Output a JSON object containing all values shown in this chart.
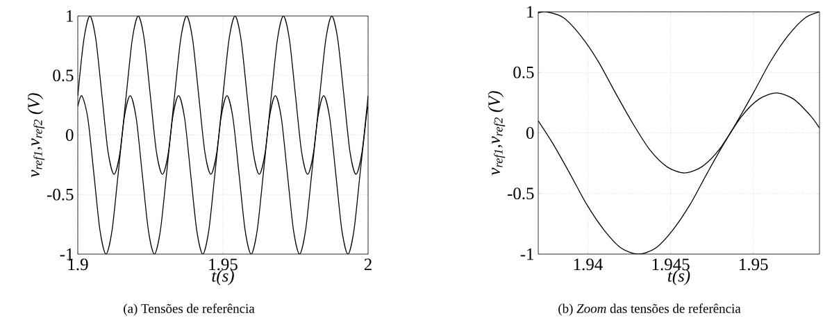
{
  "chart_data": [
    {
      "type": "line",
      "xlabel": "t(s)",
      "ylabel": "v$_{ref1}$,v$_{ref2}$ (V)",
      "annotations": [
        "(a) Tensões de referência"
      ],
      "xlim": [
        1.9,
        2
      ],
      "ylim": [
        -1,
        1
      ],
      "xticks": [
        1.9,
        1.95,
        2
      ],
      "yticks": [
        -1,
        -0.5,
        0,
        0.5,
        1
      ],
      "grid": true,
      "series": [
        {
          "color": "#000000",
          "x": [
            1.9,
            1.90208,
            1.90417,
            1.90625,
            1.90833,
            1.91042,
            1.9125,
            1.91458,
            1.91667,
            1.91875,
            1.92083,
            1.92292,
            1.925,
            1.92708,
            1.92917,
            1.93125,
            1.93333,
            1.93542,
            1.9375,
            1.93958,
            1.94167,
            1.94375,
            1.94583,
            1.94792,
            1.95,
            1.95208,
            1.95417,
            1.95625,
            1.95833,
            1.96042,
            1.9625,
            1.96458,
            1.96667,
            1.96875,
            1.97083,
            1.97292,
            1.975,
            1.97708,
            1.97917,
            1.98125,
            1.98333,
            1.98542,
            1.9875,
            1.98958,
            1.99167,
            1.99375,
            1.99583,
            1.99792,
            2.0
          ],
          "values": [
            0.33,
            0.8,
            1,
            0.8,
            0.33,
            -0.14,
            -0.33,
            -0.14,
            0.33,
            0.8,
            1,
            0.8,
            0.33,
            -0.14,
            -0.33,
            -0.14,
            0.33,
            0.8,
            1,
            0.8,
            0.33,
            -0.14,
            -0.33,
            -0.14,
            0.33,
            0.8,
            1,
            0.8,
            0.33,
            -0.14,
            -0.33,
            -0.14,
            0.33,
            0.8,
            1,
            0.8,
            0.33,
            -0.14,
            -0.33,
            -0.14,
            0.33,
            0.8,
            1,
            0.8,
            0.33,
            -0.14,
            -0.33,
            -0.14,
            0.33
          ]
        },
        {
          "color": "#000000",
          "x": [
            1.9,
            1.90139,
            1.90347,
            1.90556,
            1.90764,
            1.90972,
            1.91181,
            1.91389,
            1.91597,
            1.91806,
            1.92014,
            1.92222,
            1.92431,
            1.92639,
            1.92847,
            1.93056,
            1.93264,
            1.93472,
            1.93681,
            1.93889,
            1.94097,
            1.94306,
            1.94514,
            1.94722,
            1.94931,
            1.95139,
            1.95347,
            1.95556,
            1.95764,
            1.95972,
            1.96181,
            1.96389,
            1.96597,
            1.96806,
            1.97014,
            1.97222,
            1.97431,
            1.97639,
            1.97847,
            1.98056,
            1.98264,
            1.98472,
            1.98681,
            1.98889,
            1.99097,
            1.99306,
            1.99514,
            1.99722,
            1.99931,
            2.0
          ],
          "values": [
            0.24,
            0.33,
            0.14,
            -0.33,
            -0.8,
            -1,
            -0.8,
            -0.33,
            0.14,
            0.33,
            0.14,
            -0.33,
            -0.8,
            -1,
            -0.8,
            -0.33,
            0.14,
            0.33,
            0.14,
            -0.33,
            -0.8,
            -1,
            -0.8,
            -0.33,
            0.14,
            0.33,
            0.14,
            -0.33,
            -0.8,
            -1,
            -0.8,
            -0.33,
            0.14,
            0.33,
            0.14,
            -0.33,
            -0.8,
            -1,
            -0.8,
            -0.33,
            0.14,
            0.33,
            0.14,
            -0.33,
            -0.8,
            -1,
            -0.8,
            -0.33,
            0.14,
            0.24
          ]
        }
      ]
    },
    {
      "type": "line",
      "xlabel": "t(s)",
      "ylabel": "v$_{ref1}$,v$_{ref2}$ (V)",
      "annotations": [
        "(b) *Zoom* das tensões de referência"
      ],
      "xlim": [
        1.937,
        1.954
      ],
      "ylim": [
        -1,
        1
      ],
      "xticks": [
        1.94,
        1.945,
        1.95
      ],
      "yticks": [
        -1,
        -0.5,
        0,
        0.5,
        1
      ],
      "grid": true,
      "series": [
        {
          "color": "#000000",
          "x": [
            1.937,
            1.9375,
            1.93854,
            1.93958,
            1.94063,
            1.94167,
            1.94271,
            1.94375,
            1.94479,
            1.94583,
            1.94688,
            1.94792,
            1.94896,
            1.95,
            1.95104,
            1.95208,
            1.95313,
            1.954
          ],
          "values": [
            0.99,
            1,
            0.95,
            0.8,
            0.59,
            0.33,
            0.08,
            -0.14,
            -0.28,
            -0.33,
            -0.28,
            -0.14,
            0.08,
            0.33,
            0.59,
            0.8,
            0.95,
            1
          ]
        },
        {
          "color": "#000000",
          "x": [
            1.937,
            1.93785,
            1.93889,
            1.93993,
            1.94097,
            1.94201,
            1.94306,
            1.9441,
            1.94514,
            1.94618,
            1.94722,
            1.94826,
            1.94931,
            1.95035,
            1.95139,
            1.95243,
            1.95347,
            1.954
          ],
          "values": [
            0.1,
            -0.08,
            -0.33,
            -0.59,
            -0.8,
            -0.95,
            -1,
            -0.95,
            -0.8,
            -0.59,
            -0.33,
            -0.08,
            0.14,
            0.28,
            0.33,
            0.28,
            0.14,
            0.04
          ]
        }
      ]
    }
  ]
}
